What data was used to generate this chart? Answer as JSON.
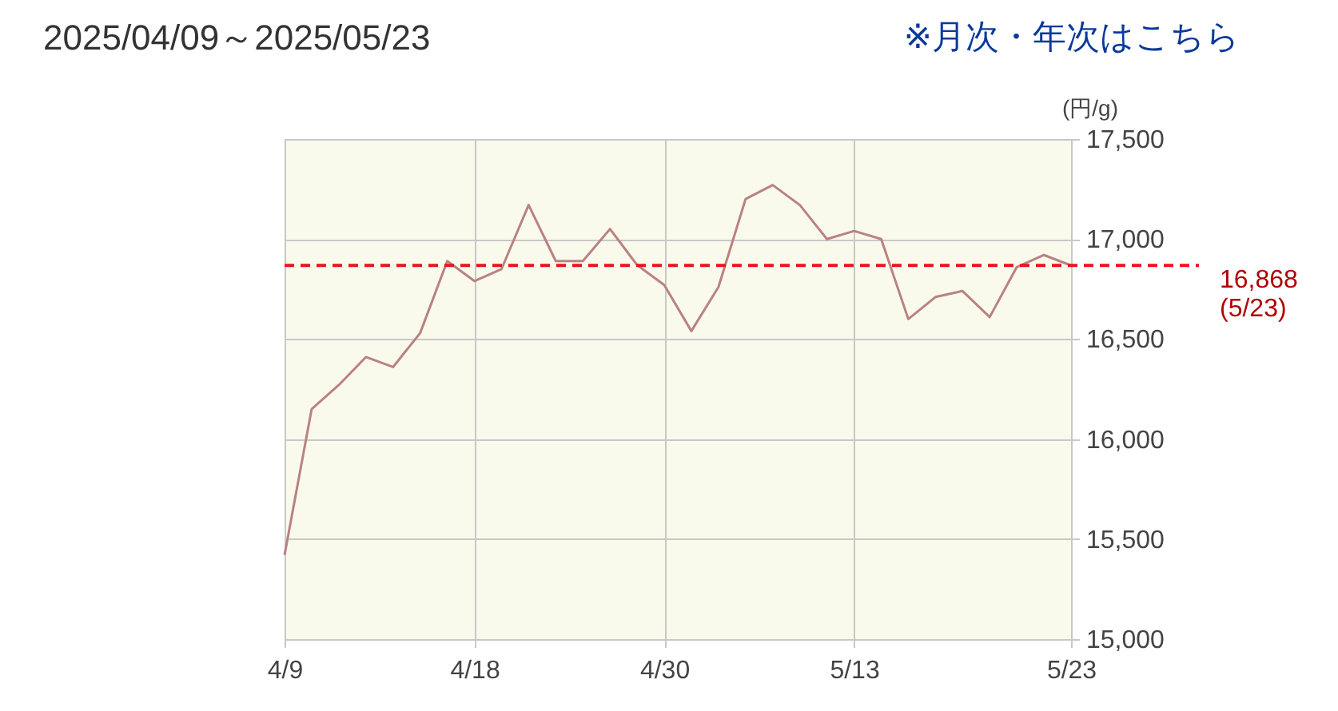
{
  "chart_data": {
    "type": "line",
    "title": "2025/04/09～2025/05/23",
    "ylabel": "(円/g)",
    "annotations": [
      "※月次・年次はこちら"
    ],
    "categories": [
      "4/9",
      null,
      null,
      null,
      null,
      null,
      null,
      "4/18",
      null,
      null,
      null,
      null,
      null,
      null,
      "4/30",
      null,
      null,
      null,
      null,
      null,
      null,
      "5/13",
      null,
      null,
      null,
      null,
      null,
      null,
      null,
      "5/23"
    ],
    "series": [
      {
        "color": "#b98282",
        "values": [
          15420,
          16150,
          16270,
          16410,
          16360,
          16530,
          16890,
          16790,
          16850,
          17170,
          16890,
          16890,
          17050,
          16870,
          16770,
          16540,
          16760,
          17200,
          17270,
          17170,
          17000,
          17040,
          17000,
          16600,
          16710,
          16740,
          16610,
          16860,
          16920,
          16868
        ]
      }
    ],
    "ylim": [
      15000,
      17500
    ],
    "yticks": [
      {
        "value": 15000,
        "label": "15,000"
      },
      {
        "value": 15500,
        "label": "15,500"
      },
      {
        "value": 16000,
        "label": "16,000"
      },
      {
        "value": 16500,
        "label": "16,500"
      },
      {
        "value": 17000,
        "label": "17,000"
      },
      {
        "value": 17500,
        "label": "17,500"
      }
    ],
    "ref_lines": [
      {
        "axis": "y",
        "value": 16868,
        "label": "16,868\n(5/23)",
        "color": "#e8141e",
        "line_style": "dashed"
      }
    ],
    "grid": true,
    "marker": "none",
    "line_style": "solid"
  }
}
